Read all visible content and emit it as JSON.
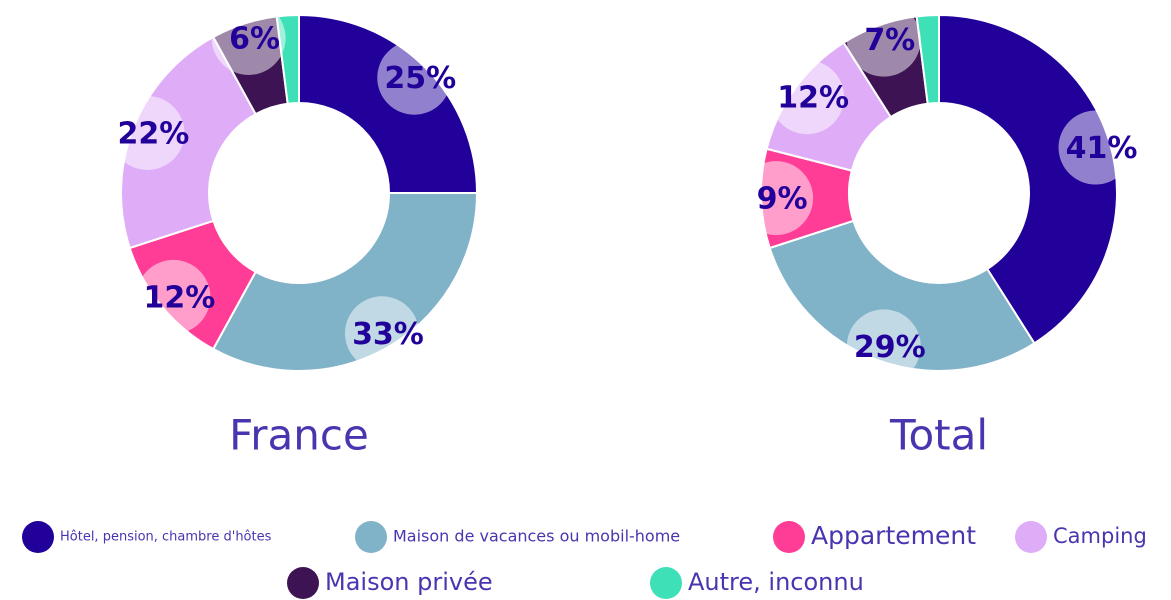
{
  "chart_data": [
    {
      "type": "donut",
      "title": "France",
      "categories": [
        "Hôtel, pension, chambre d'hôtes",
        "Maison de vacances ou mobil-home",
        "Appartement",
        "Camping",
        "Maison privée",
        "Autre, inconnu"
      ],
      "values": [
        25,
        33,
        12,
        22,
        6,
        2
      ],
      "value_labels": [
        "25%",
        "33%",
        "12%",
        "22%",
        "6%",
        null
      ],
      "colors": [
        "#22009a",
        "#80b3c8",
        "#ff3d96",
        "#dfadf7",
        "#3d1354",
        "#3ee0b8"
      ]
    },
    {
      "type": "donut",
      "title": "Total",
      "categories": [
        "Hôtel, pension, chambre d'hôtes",
        "Maison de vacances ou mobil-home",
        "Appartement",
        "Camping",
        "Maison privée",
        "Autre, inconnu"
      ],
      "values": [
        41,
        29,
        9,
        12,
        7,
        2
      ],
      "value_labels": [
        "41%",
        "29%",
        "9%",
        "12%",
        "7%",
        null
      ],
      "colors": [
        "#22009a",
        "#80b3c8",
        "#ff3d96",
        "#dfadf7",
        "#3d1354",
        "#3ee0b8"
      ]
    }
  ]
}
